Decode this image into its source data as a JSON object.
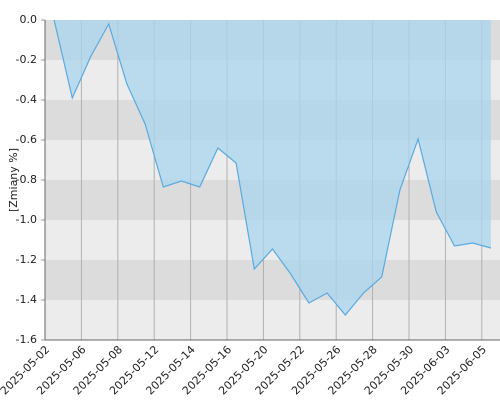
{
  "chart_data": {
    "type": "area",
    "y_label": "[Zmiany %]",
    "categories": [
      "2025-05-02",
      null,
      "2025-05-06",
      null,
      "2025-05-08",
      null,
      "2025-05-12",
      null,
      "2025-05-14",
      null,
      "2025-05-16",
      null,
      "2025-05-20",
      null,
      "2025-05-22",
      null,
      "2025-05-26",
      null,
      "2025-05-28",
      null,
      "2025-05-30",
      null,
      "2025-06-03",
      null,
      "2025-06-05"
    ],
    "values": [
      0,
      -0.39,
      -0.185,
      -0.02,
      -0.32,
      -0.52,
      -0.835,
      -0.805,
      -0.835,
      -0.64,
      -0.715,
      -1.245,
      -1.145,
      -1.27,
      -1.415,
      -1.365,
      -1.475,
      -1.365,
      -1.285,
      -0.85,
      -0.595,
      -0.96,
      -1.13,
      -1.115,
      -1.14
    ],
    "color": "#5aaae0",
    "fill": "#a9d6ee",
    "ylim": [
      -1.6,
      0
    ],
    "yticks": [
      -1.6,
      -1.4,
      -1.2,
      {
        "value": -1.0,
        "label": "-1.0"
      },
      -0.8,
      -0.6,
      -0.4,
      -0.2,
      {
        "value": 0,
        "label": "0.0"
      }
    ],
    "stripes": true,
    "grid": true
  }
}
